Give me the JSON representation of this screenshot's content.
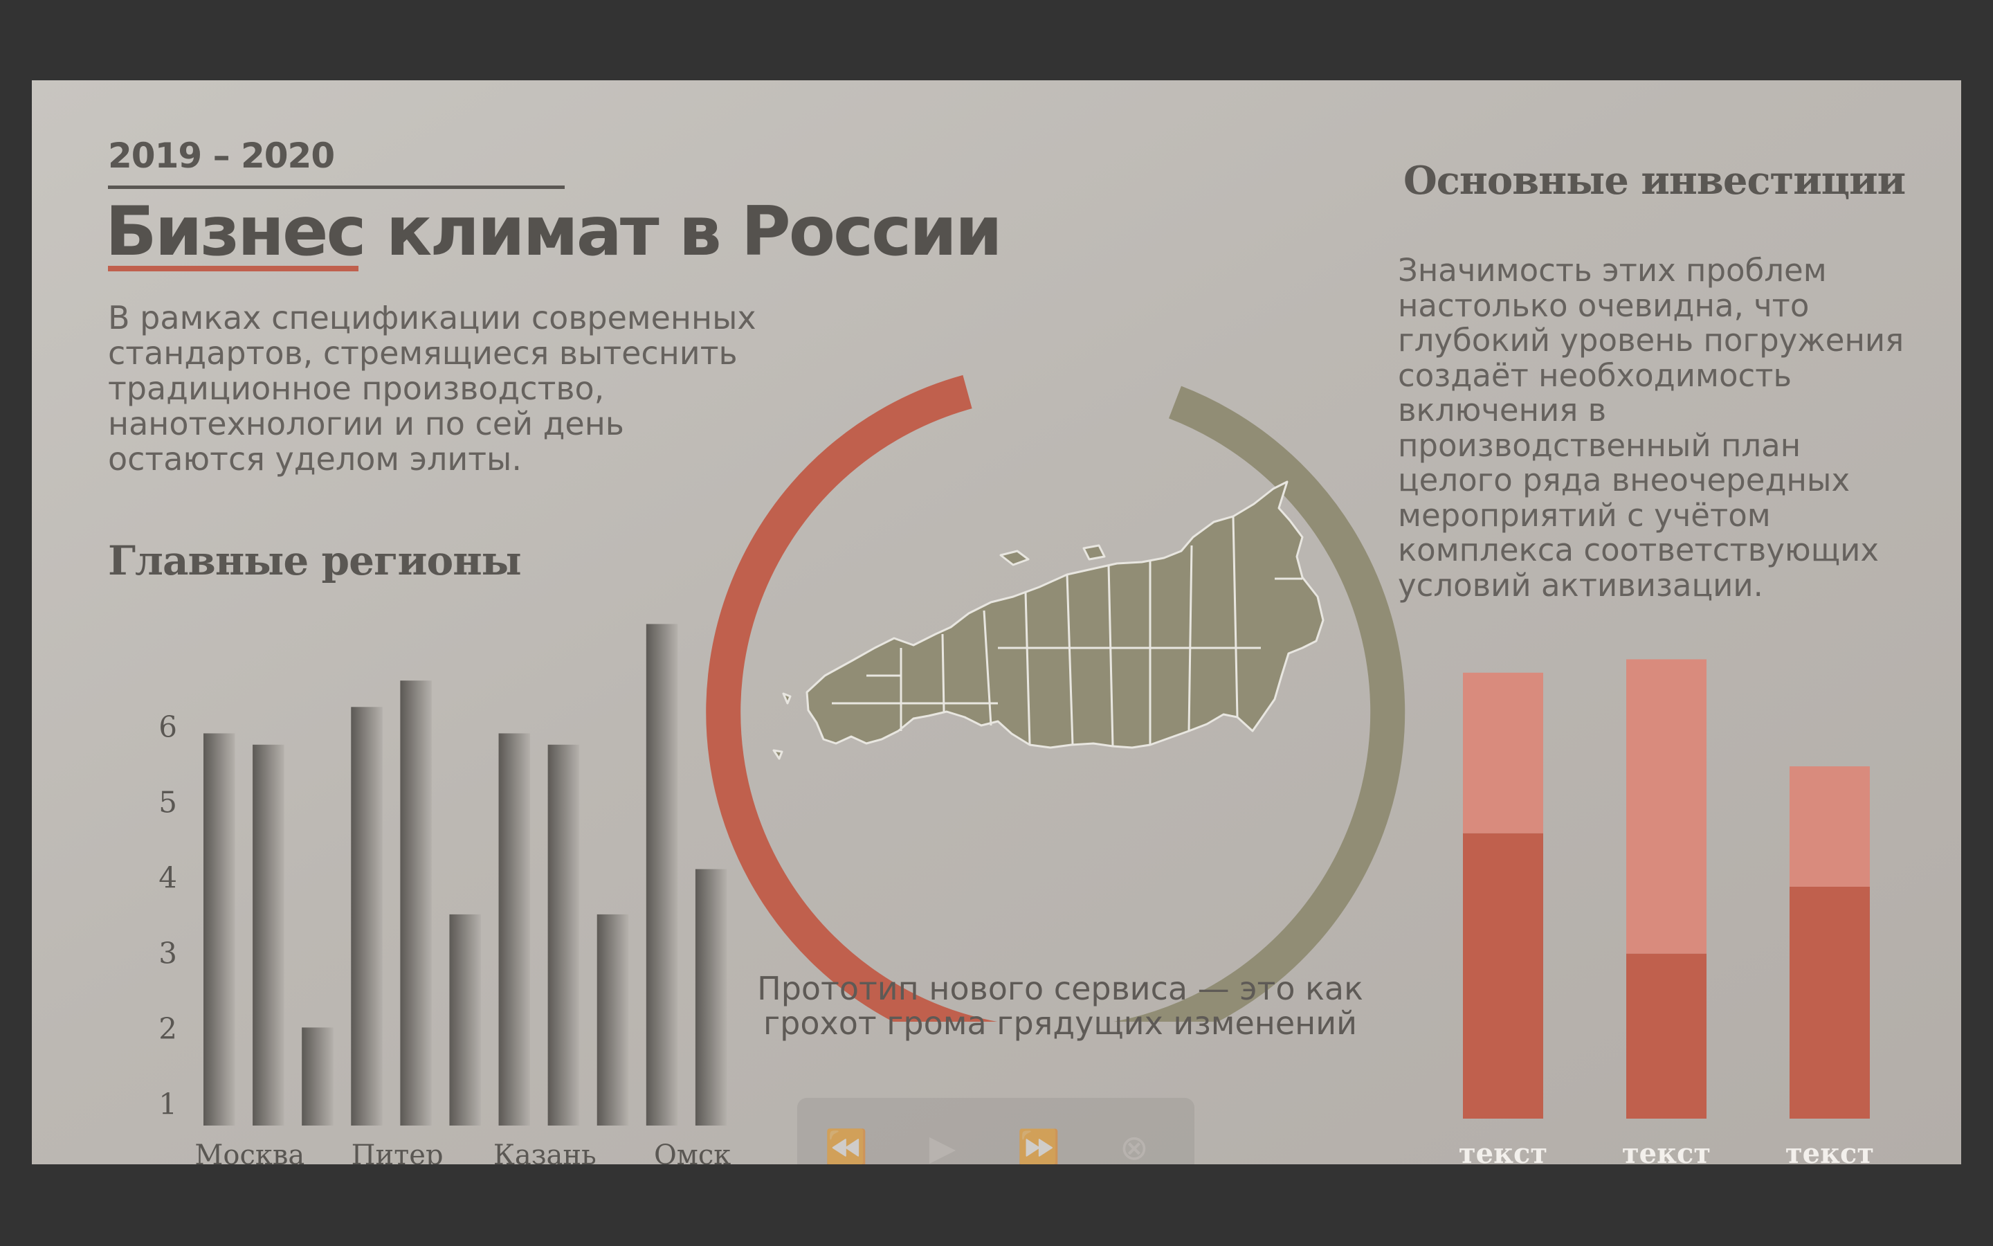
{
  "slide": {
    "years": "2019 – 2020",
    "title": "Бизнес климат в России",
    "intro": "В рамках спецификации современных стандартов, стремящиеся вытеснить традиционное производство, нанотехнологии и по сей день остаются уделом элиты.",
    "regions_title": "Главные регионы",
    "caption": "Прототип нового сервиса — это как грохот грома грядущих изменений",
    "invest_title": "Основные инвестиции",
    "invest_text": "Значимость этих проблем настолько очевидна, что глубокий уровень погружения создаёт необходимость включения в производственный план целого ряда внеочередных мероприятий с учётом комплекса соответствующих условий активизации."
  },
  "colors": {
    "accent_red": "#c0604d",
    "light_red": "#d98b7d",
    "olive": "#918d75",
    "text_dark": "#55524e"
  },
  "controls": {
    "rewind_icon": "rewind-icon",
    "play_icon": "play-icon",
    "forward_icon": "fast-forward-icon",
    "close_icon": "close-circle-icon"
  },
  "chart_data": [
    {
      "type": "bar",
      "title": "Главные регионы",
      "yticks": [
        1,
        2,
        3,
        4,
        5,
        6
      ],
      "ylim": [
        0.7,
        7.4
      ],
      "category_labels": [
        "Москва",
        "Питер",
        "Казань",
        "Омск"
      ],
      "values": [
        5.9,
        5.75,
        2.0,
        6.25,
        6.6,
        3.5,
        5.9,
        5.75,
        3.5,
        7.35,
        4.1
      ],
      "grid": false
    },
    {
      "type": "bar",
      "stacked": true,
      "categories": [
        "текст",
        "текст",
        "текст"
      ],
      "series": [
        {
          "values": [
            3.2,
            1.85,
            2.6
          ]
        },
        {
          "values": [
            1.8,
            3.3,
            1.35
          ]
        }
      ],
      "ylim": [
        0,
        5.2
      ]
    }
  ]
}
